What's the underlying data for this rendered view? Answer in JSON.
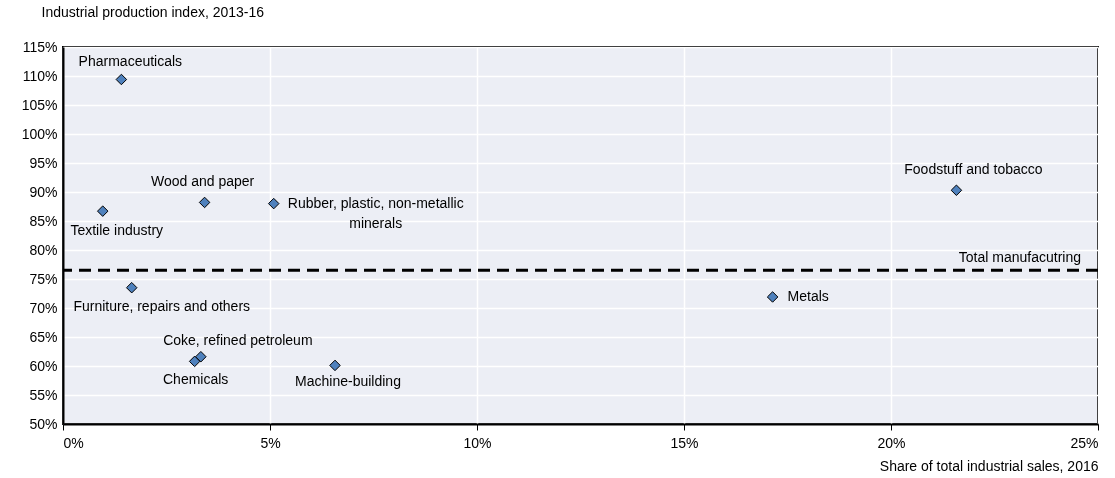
{
  "chart_data": {
    "type": "scatter",
    "xlabel": "Share of  total industrial sales, 2016",
    "ylabel": "Industrial production index, 2013-16",
    "xlim": [
      0,
      25
    ],
    "ylim": [
      50,
      115
    ],
    "xticks": [
      {
        "value": 0,
        "label": "0%"
      },
      {
        "value": 5,
        "label": "5%"
      },
      {
        "value": 10,
        "label": "10%"
      },
      {
        "value": 15,
        "label": "15%"
      },
      {
        "value": 20,
        "label": "20%"
      },
      {
        "value": 25,
        "label": "25%"
      }
    ],
    "yticks": [
      {
        "value": 50,
        "label": "50%"
      },
      {
        "value": 55,
        "label": "55%"
      },
      {
        "value": 60,
        "label": "60%"
      },
      {
        "value": 65,
        "label": "65%"
      },
      {
        "value": 70,
        "label": "70%"
      },
      {
        "value": 75,
        "label": "75%"
      },
      {
        "value": 80,
        "label": "80%"
      },
      {
        "value": 85,
        "label": "85%"
      },
      {
        "value": 90,
        "label": "90%"
      },
      {
        "value": 95,
        "label": "95%"
      },
      {
        "value": 100,
        "label": "100%"
      },
      {
        "value": 105,
        "label": "105%"
      },
      {
        "value": 110,
        "label": "110%"
      },
      {
        "value": 115,
        "label": "115%"
      }
    ],
    "grid": true,
    "legend": false,
    "marker": "diamond",
    "series": [
      {
        "name": "Pharmaceuticals",
        "color": "#4f81bd",
        "x": [
          1.41
        ],
        "values": [
          109.4
        ]
      },
      {
        "name": "Wood and paper",
        "color": "#4f81bd",
        "x": [
          3.42
        ],
        "values": [
          88.2
        ]
      },
      {
        "name": "Rubber, plastic, non-metallic minerals",
        "color": "#4f81bd",
        "x": [
          5.09
        ],
        "values": [
          88.0
        ]
      },
      {
        "name": "Textile industry",
        "color": "#4f81bd",
        "x": [
          0.96
        ],
        "values": [
          86.7
        ]
      },
      {
        "name": "Furniture, repairs and others",
        "color": "#4f81bd",
        "x": [
          1.66
        ],
        "values": [
          73.5
        ]
      },
      {
        "name": "Coke, refined petroleum",
        "color": "#4f81bd",
        "x": [
          3.33
        ],
        "values": [
          61.6
        ]
      },
      {
        "name": "Chemicals",
        "color": "#4f81bd",
        "x": [
          3.18
        ],
        "values": [
          60.8
        ]
      },
      {
        "name": "Machine-building",
        "color": "#4f81bd",
        "x": [
          6.57
        ],
        "values": [
          60.1
        ]
      },
      {
        "name": "Metals",
        "color": "#4f81bd",
        "x": [
          17.14
        ],
        "values": [
          71.9
        ]
      },
      {
        "name": "Foodstuff and tobacco",
        "color": "#4f81bd",
        "x": [
          21.58
        ],
        "values": [
          90.3
        ]
      }
    ],
    "ref_lines": [
      {
        "axis": "y",
        "value": 76.5,
        "label": "Total manufacutring",
        "color": "#000000",
        "line_style": "dashed"
      }
    ]
  }
}
